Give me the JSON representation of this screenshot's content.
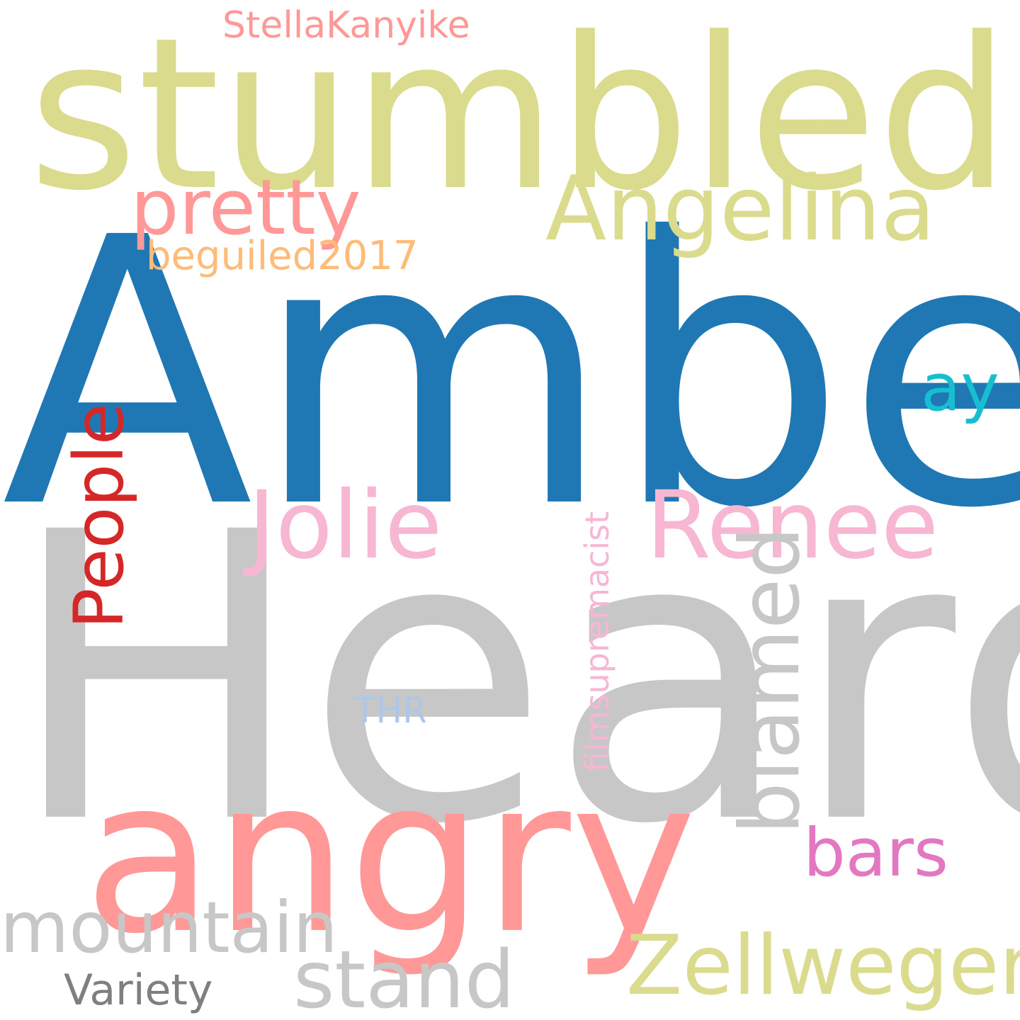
{
  "word_cloud": {
    "words": [
      {
        "text": "stumbled",
        "color": "#dbdb8d",
        "orientation": "horizontal"
      },
      {
        "text": "Amber",
        "color": "#1f77b4",
        "orientation": "horizontal"
      },
      {
        "text": "Heard",
        "color": "#c7c7c7",
        "orientation": "horizontal"
      },
      {
        "text": "angry",
        "color": "#ff9896",
        "orientation": "horizontal"
      },
      {
        "text": "Angelina",
        "color": "#dbdb8d",
        "orientation": "horizontal"
      },
      {
        "text": "pretty",
        "color": "#ff9896",
        "orientation": "horizontal"
      },
      {
        "text": "StellaKanyike",
        "color": "#ff9896",
        "orientation": "horizontal"
      },
      {
        "text": "beguiled2017",
        "color": "#ffbb78",
        "orientation": "horizontal"
      },
      {
        "text": "ay",
        "color": "#17becf",
        "orientation": "horizontal"
      },
      {
        "text": "Jolie",
        "color": "#f7b6d2",
        "orientation": "horizontal"
      },
      {
        "text": "Renee",
        "color": "#f7b6d2",
        "orientation": "horizontal"
      },
      {
        "text": "People",
        "color": "#d62728",
        "orientation": "vertical"
      },
      {
        "text": "filmsupremacist",
        "color": "#f7b6d2",
        "orientation": "vertical"
      },
      {
        "text": "THR",
        "color": "#aec7e8",
        "orientation": "horizontal"
      },
      {
        "text": "blamed",
        "color": "#c7c7c7",
        "orientation": "vertical"
      },
      {
        "text": "bars",
        "color": "#e377c2",
        "orientation": "horizontal"
      },
      {
        "text": "mountain",
        "color": "#c7c7c7",
        "orientation": "horizontal"
      },
      {
        "text": "stand",
        "color": "#c7c7c7",
        "orientation": "horizontal"
      },
      {
        "text": "Zellweger",
        "color": "#dbdb8d",
        "orientation": "horizontal"
      },
      {
        "text": "Variety",
        "color": "#7f7f7f",
        "orientation": "horizontal"
      }
    ]
  }
}
